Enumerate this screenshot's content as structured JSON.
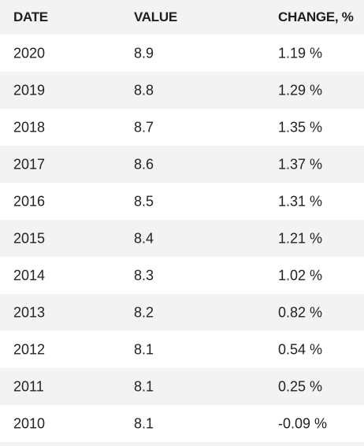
{
  "table": {
    "headers": {
      "date": "DATE",
      "value": "VALUE",
      "change": "CHANGE, %"
    },
    "rows": [
      {
        "date": "2020",
        "value": "8.9",
        "change": "1.19 %"
      },
      {
        "date": "2019",
        "value": "8.8",
        "change": "1.29 %"
      },
      {
        "date": "2018",
        "value": "8.7",
        "change": "1.35 %"
      },
      {
        "date": "2017",
        "value": "8.6",
        "change": "1.37 %"
      },
      {
        "date": "2016",
        "value": "8.5",
        "change": "1.31 %"
      },
      {
        "date": "2015",
        "value": "8.4",
        "change": "1.21 %"
      },
      {
        "date": "2014",
        "value": "8.3",
        "change": "1.02 %"
      },
      {
        "date": "2013",
        "value": "8.2",
        "change": "0.82 %"
      },
      {
        "date": "2012",
        "value": "8.1",
        "change": "0.54 %"
      },
      {
        "date": "2011",
        "value": "8.1",
        "change": "0.25 %"
      },
      {
        "date": "2010",
        "value": "8.1",
        "change": "-0.09 %"
      }
    ]
  },
  "colors": {
    "stripe": "#f3f3f3",
    "text": "#222222"
  }
}
